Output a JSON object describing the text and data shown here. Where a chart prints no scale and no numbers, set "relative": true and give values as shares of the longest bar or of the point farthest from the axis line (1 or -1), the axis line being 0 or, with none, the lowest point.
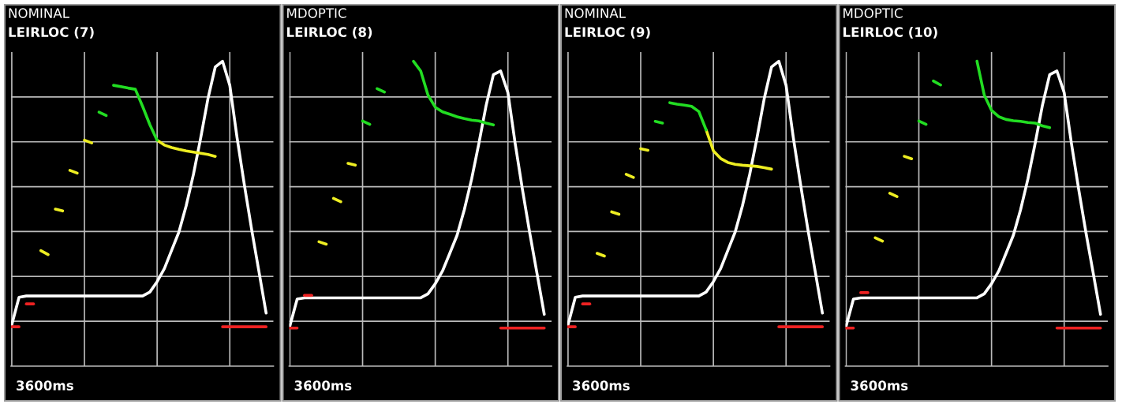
{
  "chart_data": [
    {
      "type": "line",
      "title": "NOMINAL",
      "subtitle": "LEIRLOC (7)",
      "relative": true,
      "grid": true,
      "tick_labels": false,
      "annotations": [
        "3600ms"
      ],
      "categories": [
        null,
        null,
        null,
        null,
        null,
        null,
        null,
        null,
        null,
        null,
        null,
        null,
        null,
        null,
        null,
        null,
        null,
        null,
        null,
        null,
        null,
        null,
        null,
        null,
        null,
        null,
        null,
        null,
        null,
        null,
        null,
        null,
        null,
        null,
        null,
        null
      ],
      "series": [
        {
          "color": "#ffffff",
          "values": [
            0.136,
            0.226,
            0.23,
            0.23,
            0.23,
            0.23,
            0.23,
            0.23,
            0.23,
            0.23,
            0.23,
            0.23,
            0.23,
            0.23,
            0.23,
            0.23,
            0.23,
            0.23,
            0.23,
            0.243,
            0.277,
            0.32,
            0.38,
            0.44,
            0.526,
            0.629,
            0.749,
            0.878,
            0.981,
            1.0,
            0.921,
            0.749,
            0.595,
            0.449,
            0.312,
            0.174
          ]
        },
        {
          "color": "#ee2222",
          "values": [
            0.129,
            0.129,
            null,
            null,
            null,
            null,
            null,
            null,
            null,
            null,
            null,
            null,
            null,
            null,
            null,
            null,
            null,
            null,
            null,
            null,
            null,
            null,
            null,
            null,
            null,
            null,
            null,
            null,
            null,
            0.129,
            0.129,
            0.129,
            0.129,
            0.129,
            0.129,
            0.129
          ]
        },
        {
          "color": "#ee2222",
          "values": [
            null,
            null,
            0.204,
            0.204,
            null,
            null,
            null,
            null,
            null,
            null,
            null,
            null,
            null,
            null,
            null,
            null,
            null,
            null,
            null,
            null,
            null,
            null,
            null,
            null,
            null,
            null,
            null,
            null,
            null,
            null,
            null,
            null,
            null,
            null,
            null,
            null
          ]
        },
        {
          "color": "#eeee22",
          "values": [
            null,
            null,
            null,
            null,
            0.379,
            0.366,
            null,
            null,
            0.642,
            0.633,
            null,
            null,
            null,
            null,
            null,
            null,
            null,
            null,
            null,
            null,
            null,
            null,
            null,
            null,
            null,
            null,
            null,
            null,
            null,
            null,
            null,
            null,
            null,
            null,
            null,
            null
          ]
        },
        {
          "color": "#eeee22",
          "values": [
            null,
            null,
            null,
            null,
            null,
            null,
            0.515,
            0.509,
            null,
            null,
            0.741,
            0.732,
            null,
            null,
            null,
            null,
            null,
            null,
            null,
            null,
            0.741,
            0.725,
            0.717,
            0.711,
            0.706,
            0.702,
            0.698,
            0.694,
            0.688,
            null,
            null,
            null,
            null,
            null,
            null,
            null
          ]
        },
        {
          "color": "#22dd22",
          "values": [
            null,
            null,
            null,
            null,
            null,
            null,
            null,
            null,
            null,
            null,
            null,
            null,
            0.833,
            0.822,
            null,
            null,
            null,
            null,
            null,
            null,
            null,
            null,
            null,
            null,
            null,
            null,
            null,
            null,
            null,
            null,
            null,
            null,
            null,
            null,
            null,
            null
          ]
        },
        {
          "color": "#22dd22",
          "values": [
            null,
            null,
            null,
            null,
            null,
            null,
            null,
            null,
            null,
            null,
            null,
            null,
            null,
            null,
            0.921,
            0.917,
            0.912,
            0.908,
            0.852,
            0.792,
            0.741,
            null,
            null,
            null,
            null,
            null,
            null,
            null,
            null,
            null,
            null,
            null,
            null,
            null,
            null,
            null
          ]
        }
      ]
    },
    {
      "type": "line",
      "title": "MDOPTIC",
      "subtitle": "LEIRLOC (8)",
      "relative": true,
      "grid": true,
      "tick_labels": false,
      "annotations": [
        "3600ms"
      ],
      "categories": [
        null,
        null,
        null,
        null,
        null,
        null,
        null,
        null,
        null,
        null,
        null,
        null,
        null,
        null,
        null,
        null,
        null,
        null,
        null,
        null,
        null,
        null,
        null,
        null,
        null,
        null,
        null,
        null,
        null,
        null,
        null,
        null,
        null,
        null,
        null,
        null
      ],
      "series": [
        {
          "color": "#ffffff",
          "values": [
            0.132,
            0.22,
            0.224,
            0.224,
            0.224,
            0.224,
            0.224,
            0.224,
            0.224,
            0.224,
            0.224,
            0.224,
            0.224,
            0.224,
            0.224,
            0.224,
            0.224,
            0.224,
            0.224,
            0.237,
            0.27,
            0.312,
            0.37,
            0.429,
            0.513,
            0.613,
            0.73,
            0.855,
            0.956,
            0.968,
            0.897,
            0.73,
            0.579,
            0.437,
            0.304,
            0.17
          ]
        },
        {
          "color": "#ee2222",
          "values": [
            0.125,
            0.125,
            null,
            null,
            null,
            null,
            null,
            null,
            null,
            null,
            null,
            null,
            null,
            null,
            null,
            null,
            null,
            null,
            null,
            null,
            null,
            null,
            null,
            null,
            null,
            null,
            null,
            null,
            null,
            0.125,
            0.125,
            0.125,
            0.125,
            0.125,
            0.125,
            0.125
          ]
        },
        {
          "color": "#ee2222",
          "values": [
            null,
            null,
            0.232,
            0.232,
            null,
            null,
            null,
            null,
            null,
            null,
            null,
            null,
            null,
            null,
            null,
            null,
            null,
            null,
            null,
            null,
            null,
            null,
            null,
            null,
            null,
            null,
            null,
            null,
            null,
            null,
            null,
            null,
            null,
            null,
            null,
            null
          ]
        },
        {
          "color": "#eeee22",
          "values": [
            null,
            null,
            null,
            null,
            0.408,
            0.4,
            null,
            null,
            0.665,
            0.659,
            null,
            null,
            null,
            null,
            null,
            null,
            null,
            null,
            null,
            null,
            null,
            null,
            null,
            null,
            null,
            null,
            null,
            null,
            null,
            null,
            null,
            null,
            null,
            null,
            null,
            null
          ]
        },
        {
          "color": "#eeee22",
          "values": [
            null,
            null,
            null,
            null,
            null,
            null,
            0.55,
            0.539,
            null,
            null,
            null,
            null,
            null,
            null,
            null,
            null,
            null,
            null,
            null,
            null,
            null,
            null,
            null,
            null,
            null,
            null,
            null,
            null,
            null,
            null,
            null,
            null,
            null,
            null,
            null,
            null
          ]
        },
        {
          "color": "#22dd22",
          "values": [
            null,
            null,
            null,
            null,
            null,
            null,
            null,
            null,
            null,
            null,
            0.804,
            0.793,
            null,
            null,
            null,
            null,
            null,
            null,
            null,
            null,
            null,
            null,
            null,
            null,
            null,
            null,
            null,
            null,
            null,
            null,
            null,
            null,
            null,
            null,
            null,
            null
          ]
        },
        {
          "color": "#22dd22",
          "values": [
            null,
            null,
            null,
            null,
            null,
            null,
            null,
            null,
            null,
            null,
            null,
            null,
            0.91,
            0.899,
            null,
            null,
            null,
            1.0,
            0.968,
            0.889,
            0.849,
            0.834,
            0.826,
            0.818,
            0.812,
            0.807,
            0.804,
            0.797,
            0.791,
            null,
            null,
            null,
            null,
            null,
            null,
            null
          ]
        }
      ]
    },
    {
      "type": "line",
      "title": "NOMINAL",
      "subtitle": "LEIRLOC (9)",
      "relative": true,
      "grid": true,
      "tick_labels": false,
      "annotations": [
        "3600ms"
      ],
      "categories": [
        null,
        null,
        null,
        null,
        null,
        null,
        null,
        null,
        null,
        null,
        null,
        null,
        null,
        null,
        null,
        null,
        null,
        null,
        null,
        null,
        null,
        null,
        null,
        null,
        null,
        null,
        null,
        null,
        null,
        null,
        null,
        null,
        null,
        null,
        null,
        null
      ],
      "series": [
        {
          "color": "#ffffff",
          "values": [
            0.136,
            0.226,
            0.23,
            0.23,
            0.23,
            0.23,
            0.23,
            0.23,
            0.23,
            0.23,
            0.23,
            0.23,
            0.23,
            0.23,
            0.23,
            0.23,
            0.23,
            0.23,
            0.23,
            0.243,
            0.277,
            0.32,
            0.38,
            0.44,
            0.526,
            0.629,
            0.749,
            0.878,
            0.981,
            1.0,
            0.921,
            0.749,
            0.595,
            0.449,
            0.312,
            0.174
          ]
        },
        {
          "color": "#ee2222",
          "values": [
            0.129,
            0.129,
            null,
            null,
            null,
            null,
            null,
            null,
            null,
            null,
            null,
            null,
            null,
            null,
            null,
            null,
            null,
            null,
            null,
            null,
            null,
            null,
            null,
            null,
            null,
            null,
            null,
            null,
            null,
            0.129,
            0.129,
            0.129,
            0.129,
            0.129,
            0.129,
            0.129
          ]
        },
        {
          "color": "#ee2222",
          "values": [
            null,
            null,
            0.204,
            0.204,
            null,
            null,
            null,
            null,
            null,
            null,
            null,
            null,
            null,
            null,
            null,
            null,
            null,
            null,
            null,
            null,
            null,
            null,
            null,
            null,
            null,
            null,
            null,
            null,
            null,
            null,
            null,
            null,
            null,
            null,
            null,
            null
          ]
        },
        {
          "color": "#eeee22",
          "values": [
            null,
            null,
            null,
            null,
            0.37,
            0.361,
            null,
            null,
            0.629,
            0.619,
            null,
            null,
            null,
            null,
            null,
            null,
            null,
            null,
            null,
            null,
            null,
            null,
            null,
            null,
            null,
            null,
            null,
            null,
            null,
            null,
            null,
            null,
            null,
            null,
            null,
            null
          ]
        },
        {
          "color": "#eeee22",
          "values": [
            null,
            null,
            null,
            null,
            null,
            null,
            0.506,
            0.498,
            null,
            null,
            0.713,
            0.708,
            null,
            null,
            null,
            null,
            null,
            null,
            null,
            0.775,
            0.706,
            0.681,
            0.668,
            0.662,
            0.659,
            0.657,
            0.655,
            0.651,
            0.646,
            null,
            null,
            null,
            null,
            null,
            null,
            null
          ]
        },
        {
          "color": "#22dd22",
          "values": [
            null,
            null,
            null,
            null,
            null,
            null,
            null,
            null,
            null,
            null,
            null,
            null,
            0.803,
            0.797,
            null,
            null,
            null,
            null,
            null,
            null,
            null,
            null,
            null,
            null,
            null,
            null,
            null,
            null,
            null,
            null,
            null,
            null,
            null,
            null,
            null,
            null
          ]
        },
        {
          "color": "#22dd22",
          "values": [
            null,
            null,
            null,
            null,
            null,
            null,
            null,
            null,
            null,
            null,
            null,
            null,
            null,
            null,
            0.864,
            0.859,
            0.856,
            0.852,
            0.835,
            0.775,
            null,
            null,
            null,
            null,
            null,
            null,
            null,
            null,
            null,
            null,
            null,
            null,
            null,
            null,
            null,
            null
          ]
        }
      ]
    },
    {
      "type": "line",
      "title": "MDOPTIC",
      "subtitle": "LEIRLOC (10)",
      "relative": true,
      "grid": true,
      "tick_labels": false,
      "annotations": [
        "3600ms"
      ],
      "categories": [
        null,
        null,
        null,
        null,
        null,
        null,
        null,
        null,
        null,
        null,
        null,
        null,
        null,
        null,
        null,
        null,
        null,
        null,
        null,
        null,
        null,
        null,
        null,
        null,
        null,
        null,
        null,
        null,
        null,
        null,
        null,
        null,
        null,
        null,
        null,
        null
      ],
      "series": [
        {
          "color": "#ffffff",
          "values": [
            0.132,
            0.22,
            0.224,
            0.224,
            0.224,
            0.224,
            0.224,
            0.224,
            0.224,
            0.224,
            0.224,
            0.224,
            0.224,
            0.224,
            0.224,
            0.224,
            0.224,
            0.224,
            0.224,
            0.237,
            0.27,
            0.312,
            0.37,
            0.429,
            0.513,
            0.613,
            0.73,
            0.855,
            0.956,
            0.968,
            0.897,
            0.73,
            0.579,
            0.437,
            0.304,
            0.17
          ]
        },
        {
          "color": "#ee2222",
          "values": [
            0.125,
            0.125,
            null,
            null,
            null,
            null,
            null,
            null,
            null,
            null,
            null,
            null,
            null,
            null,
            null,
            null,
            null,
            null,
            null,
            null,
            null,
            null,
            null,
            null,
            null,
            null,
            null,
            null,
            null,
            0.125,
            0.125,
            0.125,
            0.125,
            0.125,
            0.125,
            0.125
          ]
        },
        {
          "color": "#ee2222",
          "values": [
            null,
            null,
            0.241,
            0.241,
            null,
            null,
            null,
            null,
            null,
            null,
            null,
            null,
            null,
            null,
            null,
            null,
            null,
            null,
            null,
            null,
            null,
            null,
            null,
            null,
            null,
            null,
            null,
            null,
            null,
            null,
            null,
            null,
            null,
            null,
            null,
            null
          ]
        },
        {
          "color": "#eeee22",
          "values": [
            null,
            null,
            null,
            null,
            0.421,
            0.41,
            null,
            null,
            0.688,
            0.68,
            null,
            null,
            null,
            null,
            null,
            null,
            null,
            null,
            null,
            null,
            null,
            null,
            null,
            null,
            null,
            null,
            null,
            null,
            null,
            null,
            null,
            null,
            null,
            null,
            null,
            null
          ]
        },
        {
          "color": "#eeee22",
          "values": [
            null,
            null,
            null,
            null,
            null,
            null,
            0.567,
            0.556,
            null,
            null,
            null,
            null,
            null,
            null,
            null,
            null,
            null,
            null,
            null,
            null,
            null,
            null,
            null,
            null,
            null,
            null,
            null,
            null,
            null,
            null,
            null,
            null,
            null,
            null,
            null,
            null
          ]
        },
        {
          "color": "#22dd22",
          "values": [
            null,
            null,
            null,
            null,
            null,
            null,
            null,
            null,
            null,
            null,
            0.804,
            0.793,
            null,
            null,
            null,
            null,
            null,
            null,
            null,
            null,
            null,
            null,
            null,
            null,
            null,
            null,
            null,
            null,
            null,
            null,
            null,
            null,
            null,
            null,
            null,
            null
          ]
        },
        {
          "color": "#22dd22",
          "values": [
            null,
            null,
            null,
            null,
            null,
            null,
            null,
            null,
            null,
            null,
            null,
            null,
            0.935,
            0.922,
            null,
            null,
            null,
            null,
            1.0,
            0.889,
            0.839,
            0.818,
            0.809,
            0.805,
            0.803,
            0.799,
            0.797,
            0.788,
            0.782,
            null,
            null,
            null,
            null,
            null,
            null,
            null
          ]
        }
      ]
    }
  ]
}
